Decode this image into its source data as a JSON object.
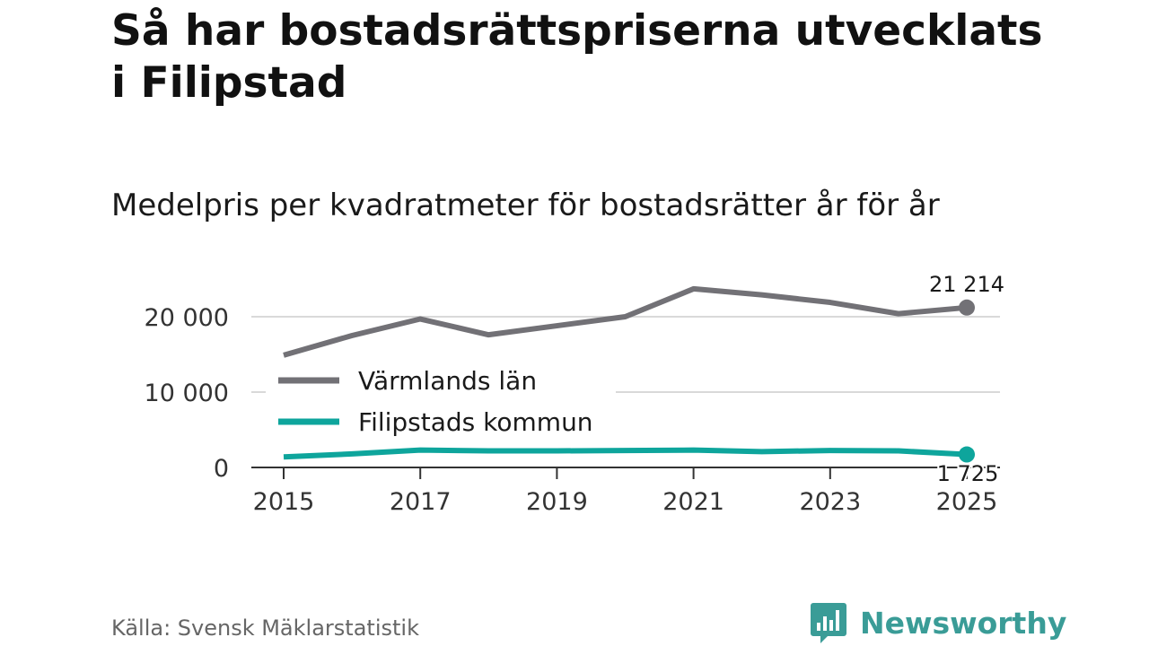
{
  "header": {
    "title": "Så har bostadsrättspriserna utvecklats i Filipstad",
    "subtitle": "Medelpris per kvadratmeter för bostadsrätter år för år"
  },
  "footer": {
    "source": "Källa: Svensk Mäklarstatistik",
    "brand": "Newsworthy"
  },
  "chart_data": {
    "type": "line",
    "title": "Medelpris per kvadratmeter för bostadsrätter år för år",
    "xlabel": "",
    "ylabel": "",
    "x": [
      2015,
      2016,
      2017,
      2018,
      2019,
      2020,
      2021,
      2022,
      2023,
      2024,
      2025
    ],
    "x_tick_labels": [
      "2015",
      "2017",
      "2019",
      "2021",
      "2023",
      "2025"
    ],
    "y_ticks": [
      0,
      10000,
      20000
    ],
    "y_tick_labels": [
      "0",
      "10 000",
      "20 000"
    ],
    "ylim": [
      0,
      24000
    ],
    "grid": true,
    "legend": "left",
    "series": [
      {
        "name": "Värmlands län",
        "color": "#727176",
        "values": [
          14900,
          17500,
          19700,
          17600,
          18800,
          20000,
          23700,
          22900,
          21900,
          20400,
          21214
        ],
        "end_label": "21 214"
      },
      {
        "name": "Filipstads kommun",
        "color": "#0ea59c",
        "values": [
          1400,
          1800,
          2300,
          2200,
          2200,
          2250,
          2300,
          2100,
          2250,
          2200,
          1725
        ],
        "end_label": "1 725"
      }
    ]
  }
}
